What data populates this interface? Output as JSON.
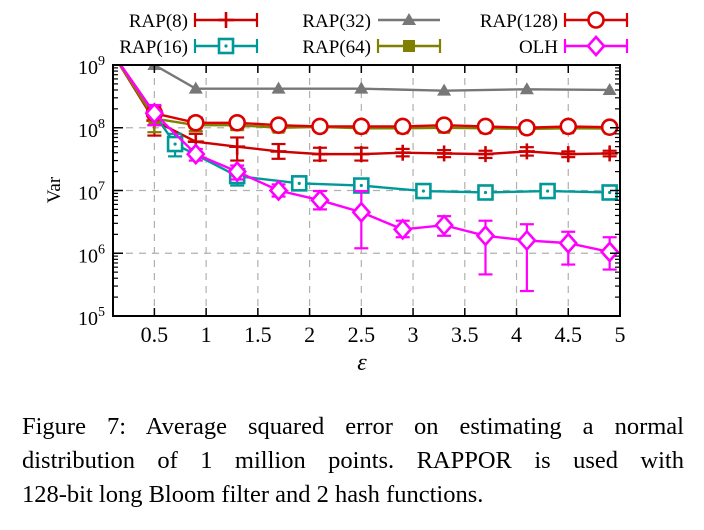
{
  "chart_data": {
    "type": "line",
    "xlabel": "ε",
    "ylabel": "Var",
    "xlim": [
      0.1,
      5
    ],
    "ylim_log10": [
      5,
      9
    ],
    "yscale": "log",
    "grid": true,
    "legend_placement": "top",
    "x_ticks": [
      {
        "value": 0.5,
        "label": "0.5"
      },
      {
        "value": 1,
        "label": "1"
      },
      {
        "value": 1.5,
        "label": "1.5"
      },
      {
        "value": 2,
        "label": "2"
      },
      {
        "value": 2.5,
        "label": "2.5"
      },
      {
        "value": 3,
        "label": "3"
      },
      {
        "value": 3.5,
        "label": "3.5"
      },
      {
        "value": 4,
        "label": "4"
      },
      {
        "value": 4.5,
        "label": "4.5"
      },
      {
        "value": 5,
        "label": "5"
      }
    ],
    "y_ticks": [
      {
        "exp": 5,
        "base": "10",
        "sup": "5"
      },
      {
        "exp": 6,
        "base": "10",
        "sup": "6"
      },
      {
        "exp": 7,
        "base": "10",
        "sup": "7"
      },
      {
        "exp": 8,
        "base": "10",
        "sup": "8"
      },
      {
        "exp": 9,
        "base": "10",
        "sup": "9"
      }
    ],
    "series": [
      {
        "name": "RAP(8)",
        "color": "#cc0000",
        "marker": "plus",
        "x": [
          0.1,
          0.5,
          0.9,
          1.3,
          1.7,
          2.1,
          2.5,
          2.9,
          3.3,
          3.7,
          4.1,
          4.5,
          4.9
        ],
        "y": [
          1500000000,
          130000000,
          60000000,
          50000000,
          42000000,
          38000000,
          38000000,
          40000000,
          39000000,
          38000000,
          42000000,
          38000000,
          39000000
        ],
        "err_low": [
          null,
          75000000,
          40000000,
          30000000,
          32000000,
          30000000,
          30000000,
          35000000,
          34000000,
          33000000,
          36000000,
          34000000,
          35000000
        ],
        "err_high": [
          null,
          180000000,
          80000000,
          70000000,
          55000000,
          48000000,
          48000000,
          46000000,
          44000000,
          43000000,
          49000000,
          42000000,
          43000000
        ]
      },
      {
        "name": "RAP(16)",
        "color": "#009999",
        "marker": "square-dot",
        "x": [
          0.1,
          0.7,
          1.3,
          1.9,
          2.5,
          3.1,
          3.7,
          4.3,
          4.9
        ],
        "y": [
          1500000000,
          55000000,
          17000000,
          13000000,
          12000000,
          9800000,
          9300000,
          9800000,
          9300000
        ],
        "err_low": [
          null,
          35000000,
          12000000,
          11000000,
          10500000,
          9000000,
          8600000,
          9200000,
          8700000
        ],
        "err_high": [
          null,
          80000000,
          22000000,
          15000000,
          13500000,
          10500000,
          10000000,
          10500000,
          10000000
        ]
      },
      {
        "name": "RAP(32)",
        "color": "#777777",
        "marker": "triangle",
        "x": [
          0.1,
          0.5,
          0.9,
          1.7,
          2.5,
          3.3,
          4.1,
          4.9
        ],
        "y": [
          1500000000,
          1000000000,
          420000000,
          420000000,
          420000000,
          390000000,
          410000000,
          400000000
        ]
      },
      {
        "name": "RAP(64)",
        "color": "#808000",
        "marker": "filled-square",
        "x": [
          0.1,
          0.5,
          0.9,
          1.3,
          1.7,
          2.1,
          2.5,
          2.9,
          3.3,
          3.7,
          4.1,
          4.5,
          4.9
        ],
        "y": [
          1500000000,
          140000000,
          110000000,
          110000000,
          100000000,
          103000000,
          98000000,
          98000000,
          100000000,
          98000000,
          96000000,
          98000000,
          97000000
        ],
        "err_low": [
          null,
          85000000,
          88000000,
          92000000,
          88000000,
          92000000,
          88000000,
          88000000,
          90000000,
          88000000,
          86000000,
          88000000,
          87000000
        ],
        "err_high": [
          null,
          180000000,
          135000000,
          130000000,
          115000000,
          115000000,
          110000000,
          110000000,
          112000000,
          110000000,
          108000000,
          110000000,
          108000000
        ]
      },
      {
        "name": "RAP(128)",
        "color": "#dd0000",
        "marker": "circle",
        "x": [
          0.1,
          0.5,
          0.9,
          1.3,
          1.7,
          2.1,
          2.5,
          2.9,
          3.3,
          3.7,
          4.1,
          4.5,
          4.9
        ],
        "y": [
          1500000000,
          170000000,
          120000000,
          120000000,
          110000000,
          105000000,
          105000000,
          105000000,
          110000000,
          105000000,
          100000000,
          105000000,
          102000000
        ],
        "err_low": [
          null,
          110000000,
          100000000,
          100000000,
          95000000,
          95000000,
          93000000,
          93000000,
          97000000,
          93000000,
          90000000,
          93000000,
          90000000
        ],
        "err_high": [
          null,
          220000000,
          145000000,
          140000000,
          125000000,
          118000000,
          118000000,
          118000000,
          122000000,
          118000000,
          112000000,
          118000000,
          115000000
        ]
      },
      {
        "name": "OLH",
        "color": "#ff00ff",
        "marker": "diamond",
        "x": [
          0.1,
          0.5,
          0.9,
          1.3,
          1.7,
          2.1,
          2.5,
          2.9,
          3.3,
          3.7,
          4.1,
          4.5,
          4.9
        ],
        "y": [
          1500000000,
          170000000,
          38000000,
          20000000,
          10000000,
          7000000,
          4500000,
          2400000,
          2800000,
          1900000,
          1600000,
          1450000,
          1050000
        ],
        "err_low": [
          null,
          110000000,
          30000000,
          15000000,
          8000000,
          5000000,
          1200000,
          1800000,
          1900000,
          460000,
          250000,
          660000,
          550000
        ],
        "err_high": [
          null,
          230000000,
          46000000,
          25000000,
          12500000,
          9800000,
          9800000,
          3300000,
          3900000,
          3300000,
          2900000,
          2200000,
          1800000
        ]
      }
    ]
  },
  "caption": {
    "line1": "Figure 7:  Average squared error on estimating a normal",
    "line2": "distribution of 1 million points.  RAPPOR is used with",
    "line3": "128-bit long Bloom filter and 2 hash functions."
  }
}
